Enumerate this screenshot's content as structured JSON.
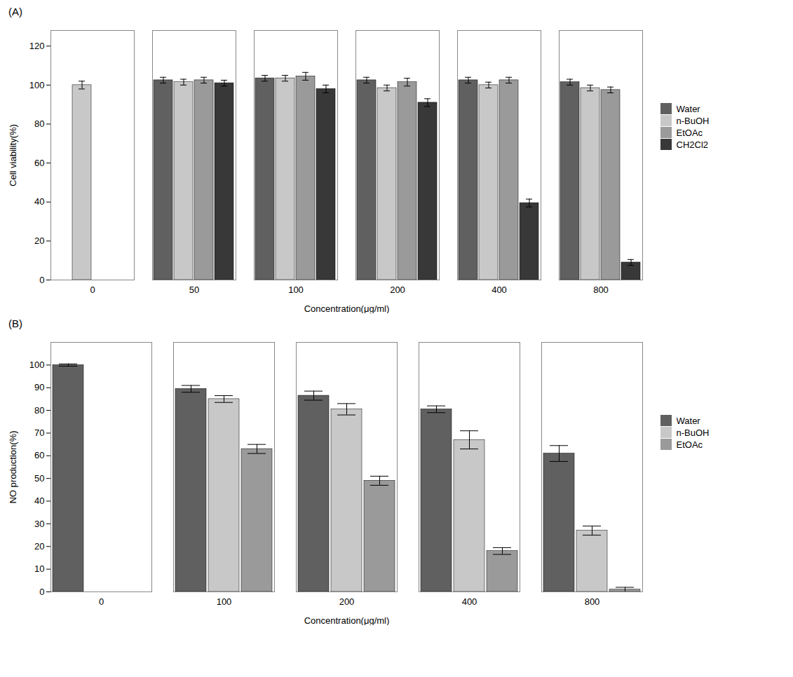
{
  "chart_data": [
    {
      "type": "bar",
      "title": "(A)",
      "xlabel": "Concentration(μg/ml)",
      "ylabel": "Cell viability(%)",
      "categories": [
        "0",
        "50",
        "100",
        "200",
        "400",
        "800"
      ],
      "series": [
        {
          "name": "Water",
          "color": "#606060",
          "values": [
            null,
            102.5,
            103.5,
            102.5,
            102.5,
            101.5
          ],
          "errors": [
            null,
            1.5,
            1.5,
            1.5,
            1.5,
            1.5
          ]
        },
        {
          "name": "n-BuOH",
          "color": "#c8c8c8",
          "values": [
            100.0,
            101.5,
            103.5,
            98.5,
            100.0,
            98.5
          ],
          "errors": [
            2.0,
            1.5,
            1.5,
            1.5,
            1.5,
            1.5
          ]
        },
        {
          "name": "EtOAc",
          "color": "#9a9a9a",
          "values": [
            null,
            102.5,
            104.5,
            101.5,
            102.5,
            97.5
          ],
          "errors": [
            null,
            1.5,
            2.0,
            2.0,
            1.5,
            1.5
          ]
        },
        {
          "name": "CH2Cl2",
          "color": "#383838",
          "values": [
            null,
            101.0,
            98.0,
            91.0,
            39.5,
            9.0
          ],
          "errors": [
            null,
            1.5,
            2.0,
            2.0,
            2.0,
            1.5
          ]
        }
      ],
      "ylim": [
        0,
        128
      ],
      "yticks": [
        0,
        20,
        40,
        60,
        80,
        100,
        120
      ],
      "grid": false,
      "legend": "right"
    },
    {
      "type": "bar",
      "title": "(B)",
      "xlabel": "Concentration(μg/ml)",
      "ylabel": "NO production(%)",
      "categories": [
        "0",
        "100",
        "200",
        "400",
        "800"
      ],
      "series": [
        {
          "name": "Water",
          "color": "#606060",
          "values": [
            100.0,
            89.5,
            86.5,
            80.5,
            61.0
          ],
          "errors": [
            0.5,
            1.5,
            2.0,
            1.5,
            3.5
          ]
        },
        {
          "name": "n-BuOH",
          "color": "#c8c8c8",
          "values": [
            null,
            85.0,
            80.5,
            67.0,
            27.0
          ],
          "errors": [
            null,
            1.5,
            2.5,
            4.0,
            2.0
          ]
        },
        {
          "name": "EtOAc",
          "color": "#9a9a9a",
          "values": [
            null,
            63.0,
            49.0,
            18.0,
            1.0
          ],
          "errors": [
            null,
            2.0,
            2.0,
            1.5,
            1.0
          ]
        }
      ],
      "ylim": [
        0,
        110
      ],
      "yticks": [
        0,
        10,
        20,
        30,
        40,
        50,
        60,
        70,
        80,
        90,
        100
      ],
      "grid": false,
      "legend": "right"
    }
  ]
}
